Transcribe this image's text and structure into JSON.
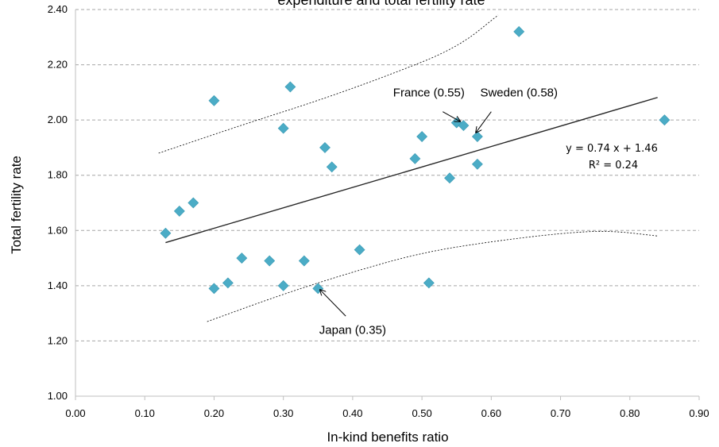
{
  "chart_data": {
    "type": "scatter",
    "title": "expenditure and total fertility rate",
    "xlabel": "In-kind benefits ratio",
    "ylabel": "Total fertility rate",
    "xlim": [
      0.0,
      0.9
    ],
    "ylim": [
      1.0,
      2.4
    ],
    "x_ticks": [
      "0.00",
      "0.10",
      "0.20",
      "0.30",
      "0.40",
      "0.50",
      "0.60",
      "0.70",
      "0.80",
      "0.90"
    ],
    "y_ticks": [
      "1.00",
      "1.20",
      "1.40",
      "1.60",
      "1.80",
      "2.00",
      "2.20",
      "2.40"
    ],
    "grid": "horizontal dashed",
    "marker_color": "#4bacc6",
    "points": [
      {
        "x": 0.13,
        "y": 1.59
      },
      {
        "x": 0.15,
        "y": 1.67
      },
      {
        "x": 0.17,
        "y": 1.7
      },
      {
        "x": 0.2,
        "y": 1.39
      },
      {
        "x": 0.2,
        "y": 2.07
      },
      {
        "x": 0.22,
        "y": 1.41
      },
      {
        "x": 0.24,
        "y": 1.5
      },
      {
        "x": 0.28,
        "y": 1.49
      },
      {
        "x": 0.3,
        "y": 1.4
      },
      {
        "x": 0.3,
        "y": 1.97
      },
      {
        "x": 0.31,
        "y": 2.12
      },
      {
        "x": 0.33,
        "y": 1.49
      },
      {
        "x": 0.35,
        "y": 1.39
      },
      {
        "x": 0.36,
        "y": 1.9
      },
      {
        "x": 0.37,
        "y": 1.83
      },
      {
        "x": 0.41,
        "y": 1.53
      },
      {
        "x": 0.49,
        "y": 1.86
      },
      {
        "x": 0.5,
        "y": 1.94
      },
      {
        "x": 0.51,
        "y": 1.41
      },
      {
        "x": 0.54,
        "y": 1.79
      },
      {
        "x": 0.55,
        "y": 1.99
      },
      {
        "x": 0.56,
        "y": 1.98
      },
      {
        "x": 0.58,
        "y": 1.94
      },
      {
        "x": 0.58,
        "y": 1.84
      },
      {
        "x": 0.64,
        "y": 2.32
      },
      {
        "x": 0.85,
        "y": 2.0
      }
    ],
    "trendline": {
      "slope": 0.74,
      "intercept": 1.46,
      "x_start": 0.13,
      "x_end": 0.84
    },
    "equation_text": "y = 0.74 x + 1.46",
    "r2_text": "R² = 0.24",
    "upper_band": [
      [
        0.12,
        1.88
      ],
      [
        0.25,
        1.99
      ],
      [
        0.35,
        2.07
      ],
      [
        0.45,
        2.16
      ],
      [
        0.55,
        2.26
      ],
      [
        0.61,
        2.38
      ]
    ],
    "lower_band": [
      [
        0.19,
        1.27
      ],
      [
        0.3,
        1.37
      ],
      [
        0.4,
        1.45
      ],
      [
        0.5,
        1.52
      ],
      [
        0.6,
        1.56
      ],
      [
        0.7,
        1.59
      ],
      [
        0.77,
        1.6
      ],
      [
        0.84,
        1.58
      ]
    ],
    "annotations": [
      {
        "label": "France (0.55)",
        "tx": 0.51,
        "ty": 2.1,
        "ax1": 0.53,
        "ay1": 2.03,
        "ax2": 0.555,
        "ay2": 1.995
      },
      {
        "label": "Sweden (0.58)",
        "tx": 0.64,
        "ty": 2.1,
        "ax1": 0.6,
        "ay1": 2.03,
        "ax2": 0.578,
        "ay2": 1.955
      },
      {
        "label": "Japan (0.35)",
        "tx": 0.4,
        "ty": 1.24,
        "ax1": 0.39,
        "ay1": 1.29,
        "ax2": 0.353,
        "ay2": 1.385
      }
    ]
  }
}
